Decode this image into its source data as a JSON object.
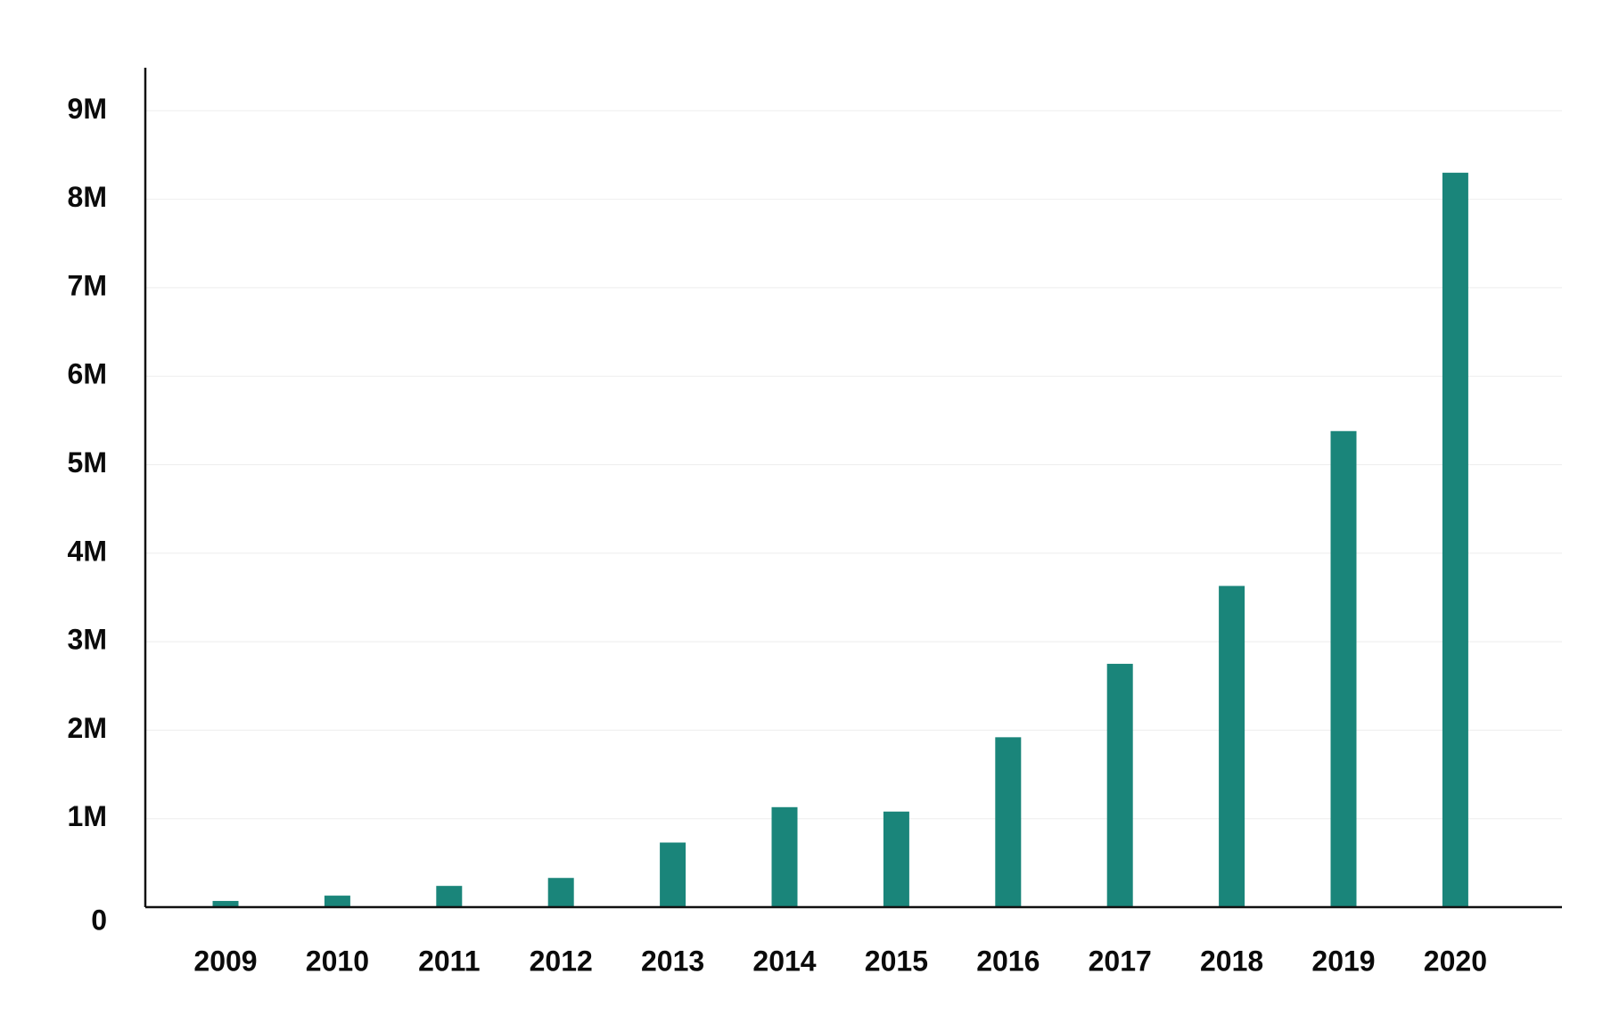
{
  "chart_data": {
    "type": "bar",
    "title": "",
    "xlabel": "",
    "ylabel": "",
    "categories": [
      "2009",
      "2010",
      "2011",
      "2012",
      "2013",
      "2014",
      "2015",
      "2016",
      "2017",
      "2018",
      "2019",
      "2020"
    ],
    "values": [
      70000,
      130000,
      240000,
      330000,
      730000,
      1130000,
      1080000,
      1920000,
      2750000,
      3630000,
      5380000,
      8300000
    ],
    "ylim": [
      0,
      9500000
    ],
    "yticks": [
      0,
      1000000,
      2000000,
      3000000,
      4000000,
      5000000,
      6000000,
      7000000,
      8000000,
      9000000
    ],
    "ytick_labels": [
      "0",
      "1M",
      "2M",
      "3M",
      "4M",
      "5M",
      "6M",
      "7M",
      "8M",
      "9M"
    ],
    "grid": "horizontal",
    "legend": "none",
    "bar_color": "#1a857a"
  }
}
